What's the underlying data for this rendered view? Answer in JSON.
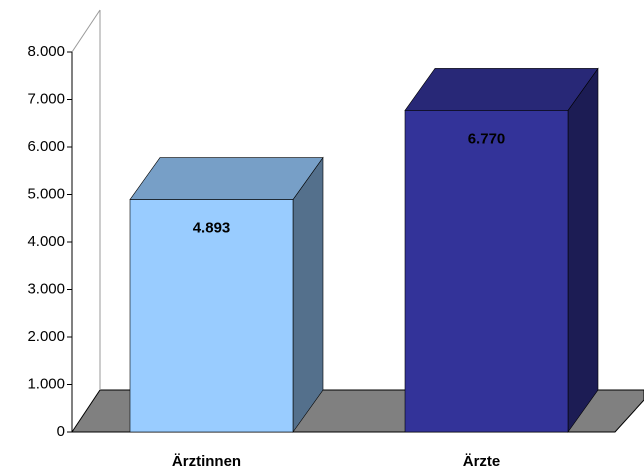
{
  "chart_data": {
    "type": "bar3d",
    "categories": [
      "Ärztinnen",
      "Ärzte"
    ],
    "values": [
      4893,
      6770
    ],
    "value_labels": [
      "4.893",
      "6.770"
    ],
    "colors": [
      "#99ccff",
      "#333399"
    ],
    "ylim": [
      0,
      8000
    ],
    "yticks": [
      0,
      {
        "value": 1000,
        "label": "1.000"
      },
      {
        "value": 2000,
        "label": "2.000"
      },
      {
        "value": 3000,
        "label": "3.000"
      },
      {
        "value": 4000,
        "label": "4.000"
      },
      {
        "value": 5000,
        "label": "5.000"
      },
      {
        "value": 6000,
        "label": "6.000"
      },
      {
        "value": 7000,
        "label": "7.000"
      },
      {
        "value": 8000,
        "label": "8.000"
      }
    ]
  }
}
